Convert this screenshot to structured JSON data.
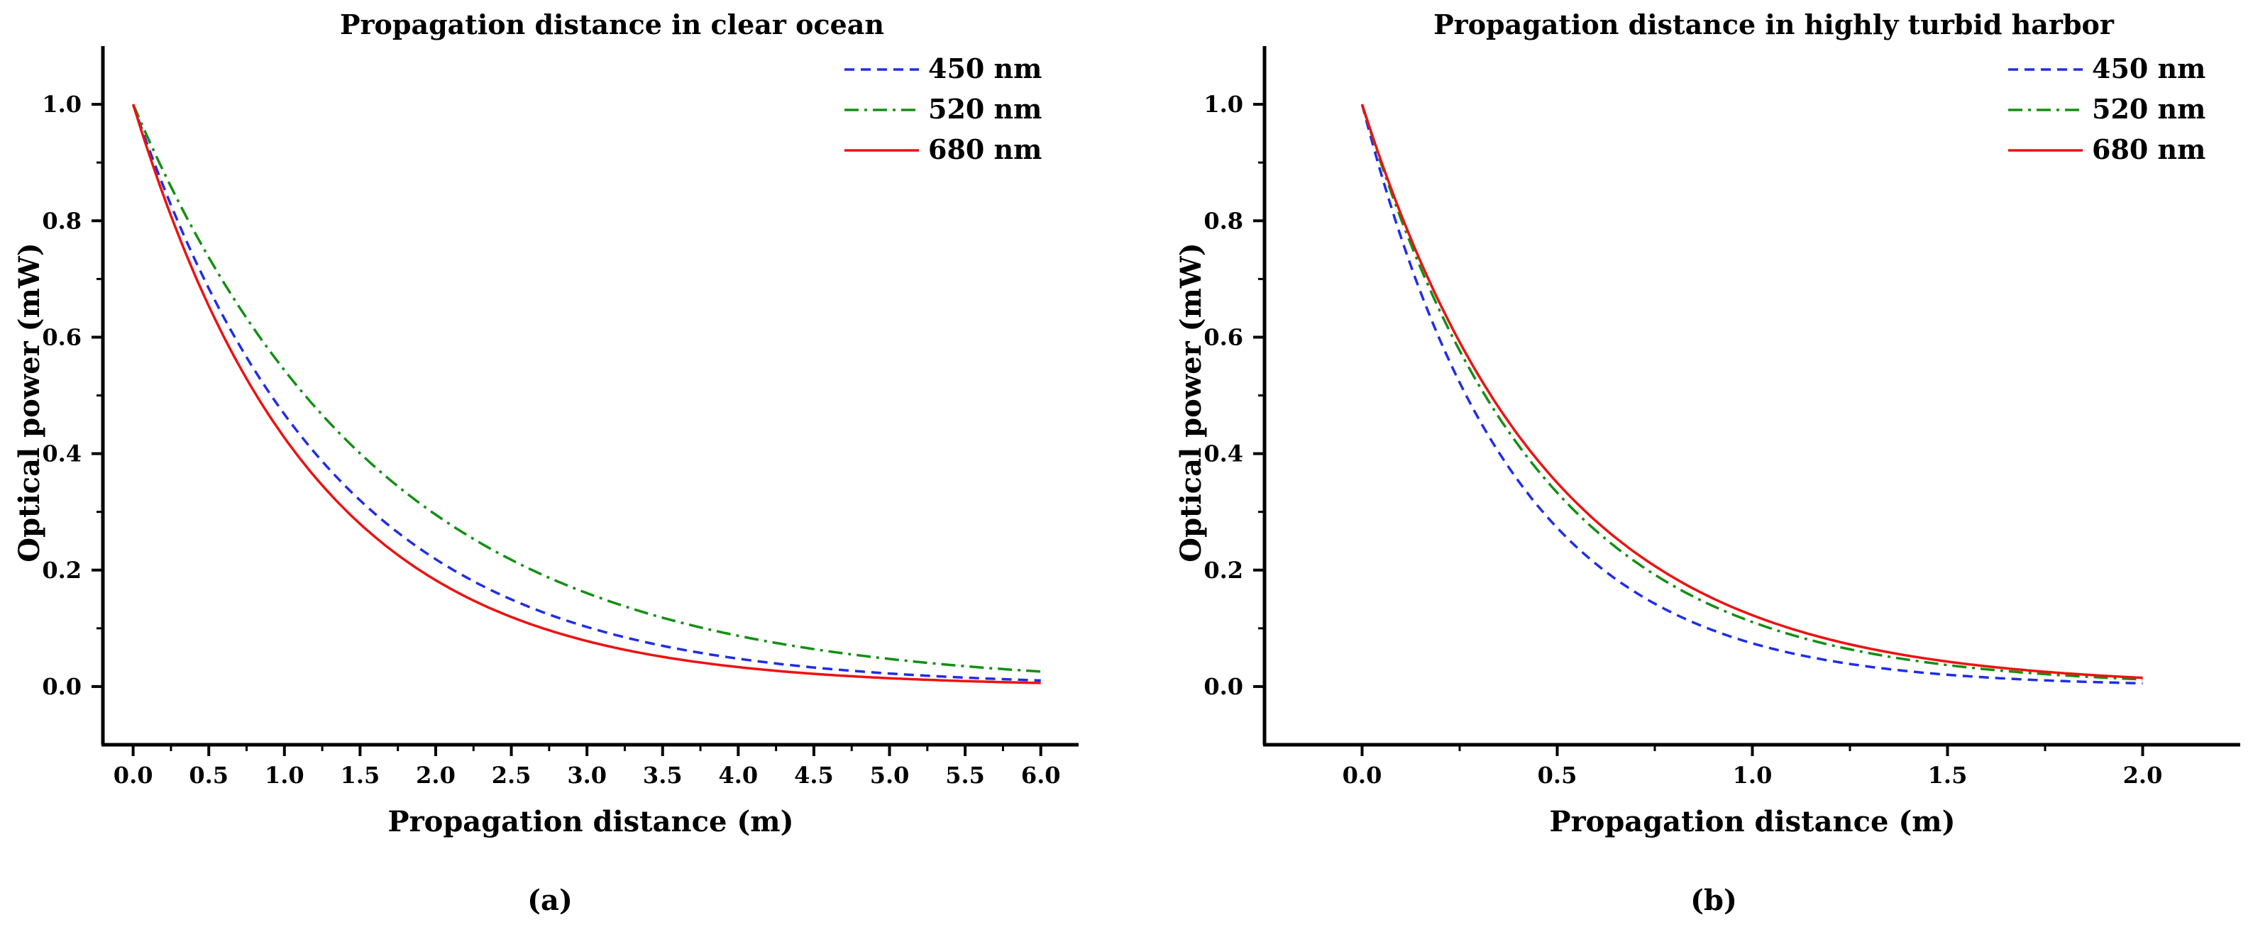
{
  "chart_data": [
    {
      "type": "line",
      "panel": "(a)",
      "title": "Propagation distance in clear ocean",
      "xlabel": "Propagation distance (m)",
      "ylabel": "Optical power (mW)",
      "xlim": [
        -0.2,
        6.25
      ],
      "ylim": [
        -0.1,
        1.1
      ],
      "xticks": [
        "0.0",
        "0.5",
        "1.0",
        "1.5",
        "2.0",
        "2.5",
        "3.0",
        "3.5",
        "4.0",
        "4.5",
        "5.0",
        "5.5",
        "6.0"
      ],
      "xtick_values": [
        0,
        0.5,
        1,
        1.5,
        2,
        2.5,
        3,
        3.5,
        4,
        4.5,
        5,
        5.5,
        6
      ],
      "yticks": [
        "0.0",
        "0.2",
        "0.4",
        "0.6",
        "0.8",
        "1.0"
      ],
      "ytick_values": [
        0,
        0.2,
        0.4,
        0.6,
        0.8,
        1.0
      ],
      "legend_position": "top-right",
      "series": [
        {
          "name": "450 nm",
          "color": "#1f2de8",
          "dash": "dash",
          "x_max": 6.0,
          "attenuation": 0.76
        },
        {
          "name": "520 nm",
          "color": "#138f13",
          "dash": "dashdot",
          "x_max": 6.0,
          "attenuation": 0.61
        },
        {
          "name": "680 nm",
          "color": "#ee1111",
          "dash": "solid",
          "x_max": 6.0,
          "attenuation": 0.85
        }
      ]
    },
    {
      "type": "line",
      "panel": "(b)",
      "title": "Propagation distance in highly turbid harbor",
      "xlabel": "Propagation distance (m)",
      "ylabel": "Optical power (mW)",
      "xlim": [
        -0.25,
        2.25
      ],
      "ylim": [
        -0.1,
        1.1
      ],
      "xticks": [
        "0.0",
        "0.5",
        "1.0",
        "1.5",
        "2.0"
      ],
      "xtick_values": [
        0,
        0.5,
        1,
        1.5,
        2
      ],
      "yticks": [
        "0.0",
        "0.2",
        "0.4",
        "0.6",
        "0.8",
        "1.0"
      ],
      "ytick_values": [
        0,
        0.2,
        0.4,
        0.6,
        0.8,
        1.0
      ],
      "legend_position": "top-right",
      "series": [
        {
          "name": "450 nm",
          "color": "#1f2de8",
          "dash": "dash",
          "x_max": 2.0,
          "attenuation": 2.6
        },
        {
          "name": "520 nm",
          "color": "#138f13",
          "dash": "dashdot",
          "x_max": 2.0,
          "attenuation": 2.2
        },
        {
          "name": "680 nm",
          "color": "#ee1111",
          "dash": "solid",
          "x_max": 2.0,
          "attenuation": 2.1
        }
      ]
    }
  ]
}
